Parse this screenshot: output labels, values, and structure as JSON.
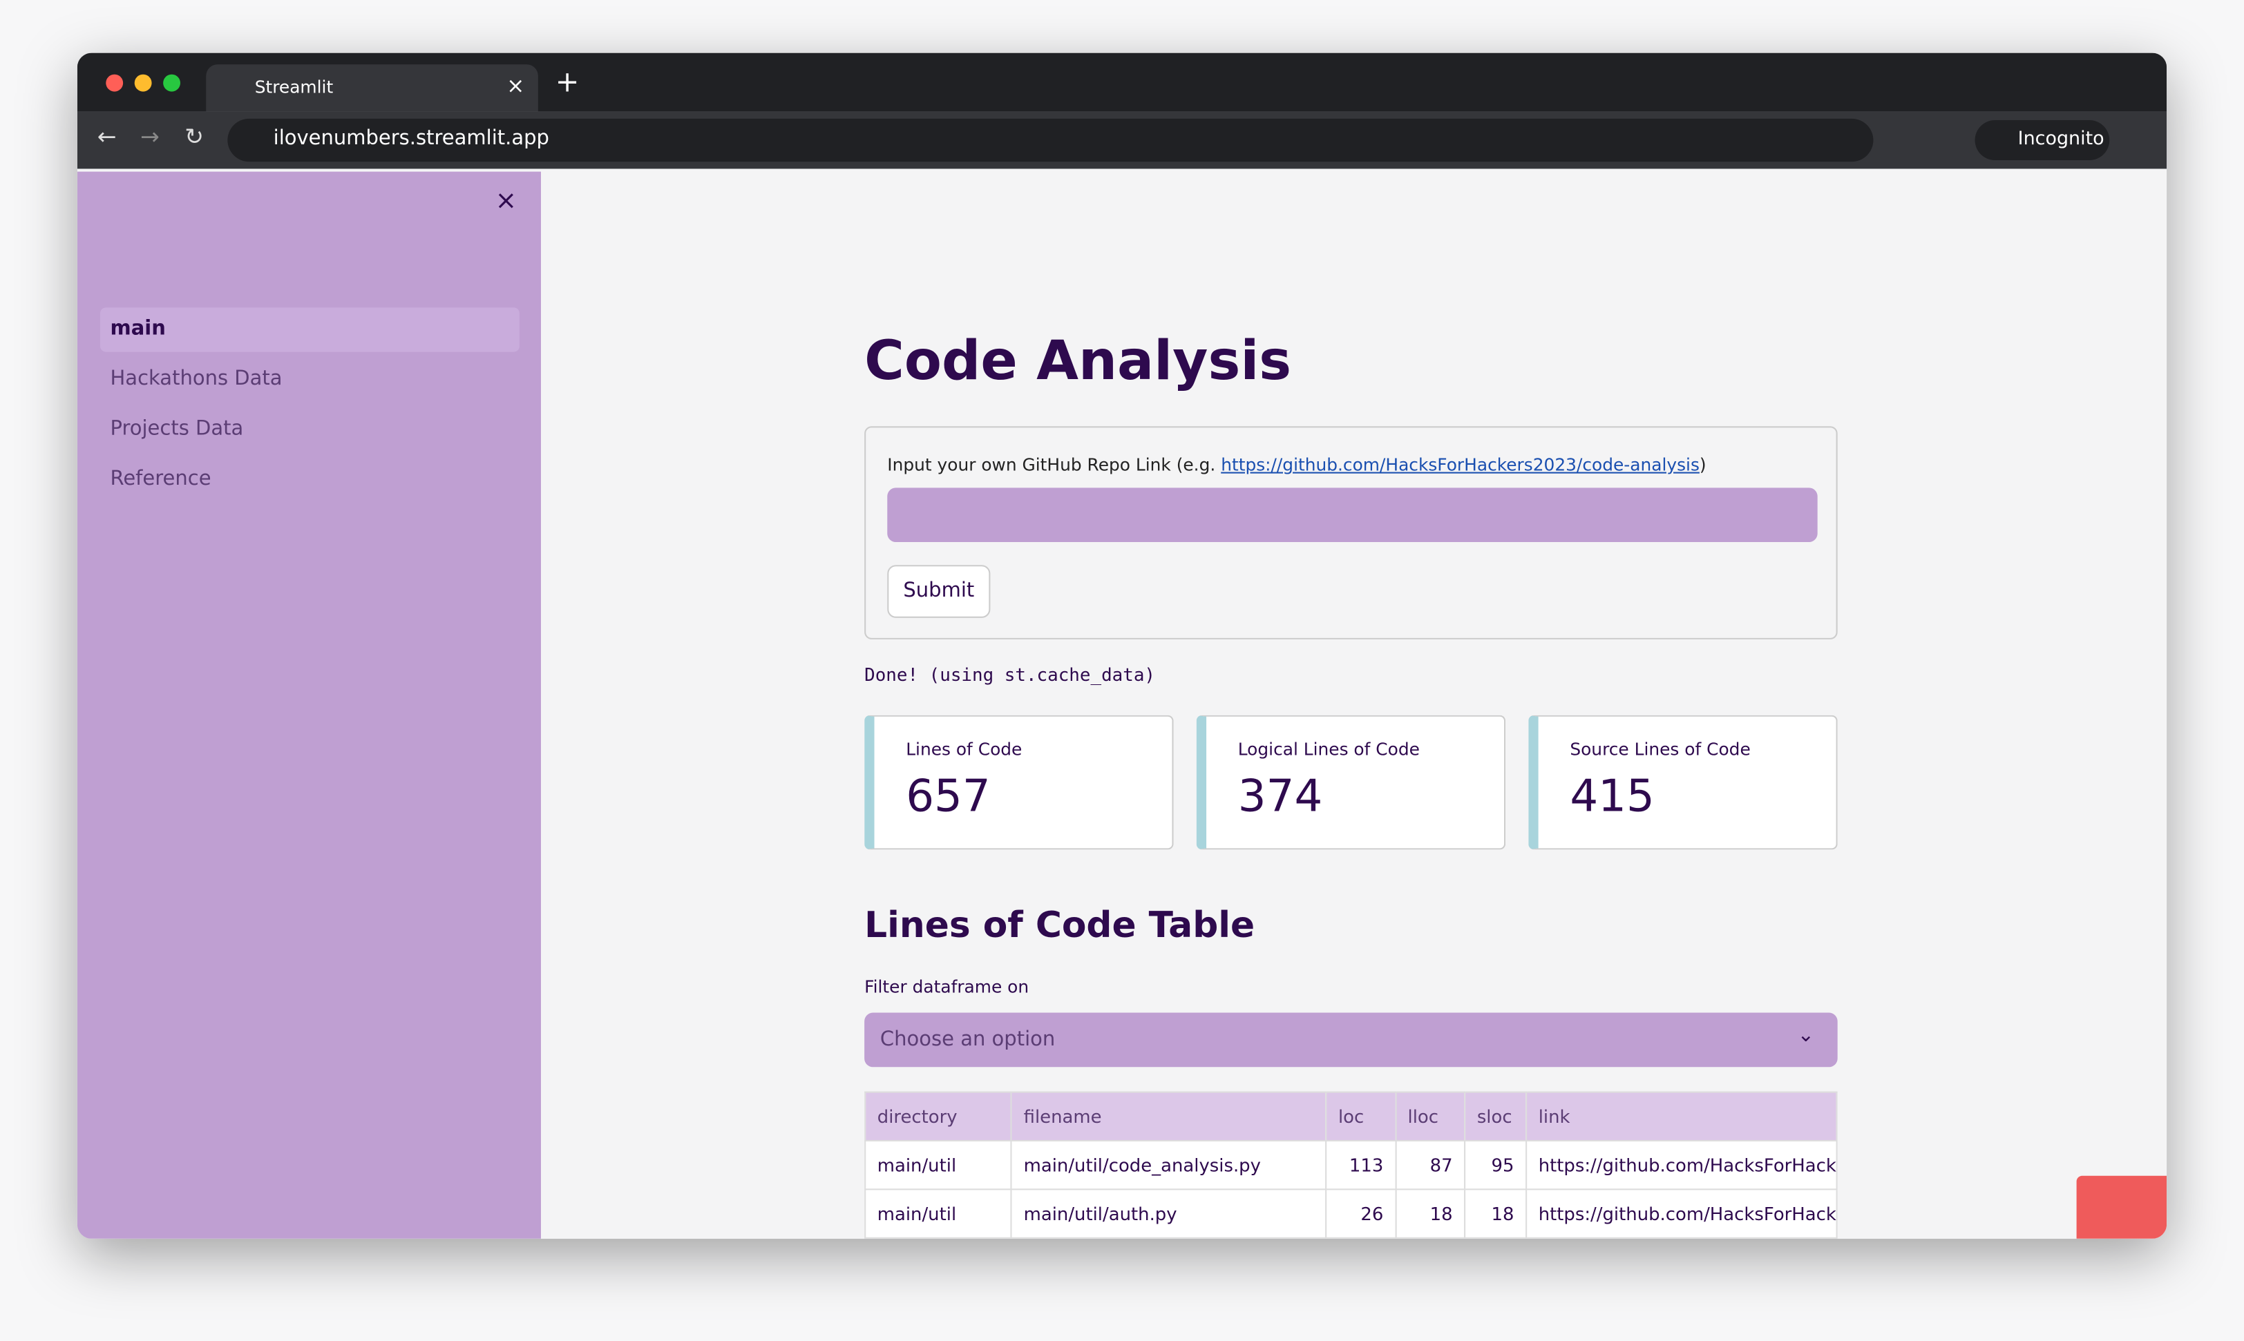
{
  "browser": {
    "tab_title": "Streamlit",
    "url": "ilovenumbers.streamlit.app",
    "profile": "Incognito"
  },
  "sidebar": {
    "items": [
      "main",
      "Hackathons Data",
      "Projects Data",
      "Reference"
    ]
  },
  "main": {
    "title": "Code Analysis",
    "input_label": "Input your own GitHub Repo Link (e.g. ",
    "input_link": "https://github.com/HacksForHackers2023/code-analysis",
    "input_label_end": ")",
    "submit": "Submit",
    "status": "Done! (using st.cache_data)",
    "metrics": [
      {
        "label": "Lines of Code",
        "value": "657"
      },
      {
        "label": "Logical Lines of Code",
        "value": "374"
      },
      {
        "label": "Source Lines of Code",
        "value": "415"
      }
    ],
    "table_title": "Lines of Code Table",
    "filter_label": "Filter dataframe on",
    "filter_placeholder": "Choose an option",
    "table": {
      "columns": [
        "directory",
        "filename",
        "loc",
        "lloc",
        "sloc",
        "link"
      ],
      "rows": [
        [
          "main/util",
          "main/util/code_analysis.py",
          "113",
          "87",
          "95",
          "https://github.com/HacksForHack"
        ],
        [
          "main/util",
          "main/util/auth.py",
          "26",
          "18",
          "18",
          "https://github.com/HacksForHack"
        ]
      ]
    }
  }
}
